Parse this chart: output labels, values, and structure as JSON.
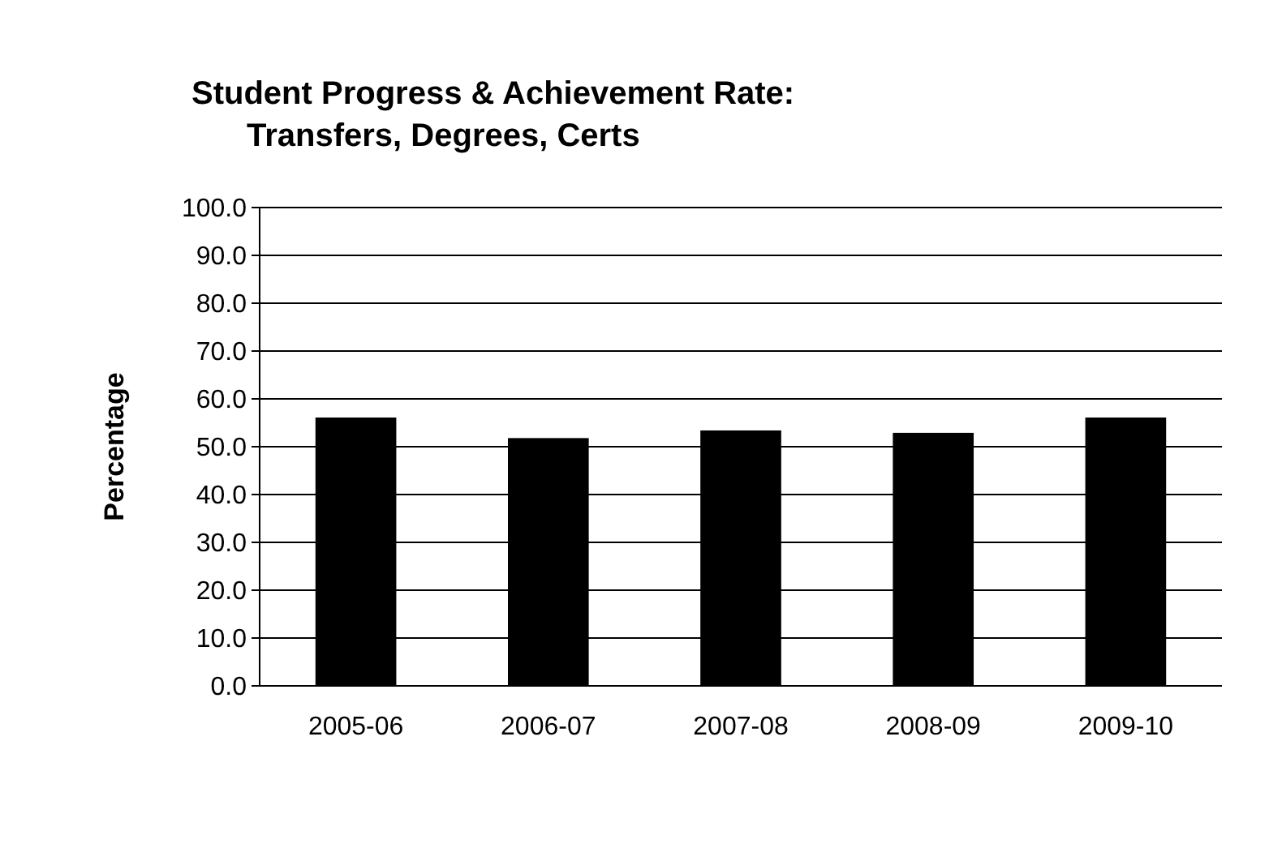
{
  "chart_data": {
    "type": "bar",
    "title": "Student Progress & Achievement Rate:\nTransfers, Degrees, Certs",
    "ylabel": "Percentage",
    "categories": [
      "2005-06",
      "2006-07",
      "2007-08",
      "2008-09",
      "2009-10"
    ],
    "values": [
      56.1,
      51.8,
      53.4,
      52.9,
      56.1
    ],
    "color": "#000000",
    "ylim": [
      0,
      100
    ],
    "yticks": [
      {
        "value": 0,
        "label": "0.0"
      },
      {
        "value": 10,
        "label": "10.0"
      },
      {
        "value": 20,
        "label": "20.0"
      },
      {
        "value": 30,
        "label": "30.0"
      },
      {
        "value": 40,
        "label": "40.0"
      },
      {
        "value": 50,
        "label": "50.0"
      },
      {
        "value": 60,
        "label": "60.0"
      },
      {
        "value": 70,
        "label": "70.0"
      },
      {
        "value": 80,
        "label": "80.0"
      },
      {
        "value": 90,
        "label": "90.0"
      },
      {
        "value": 100,
        "label": "100.0"
      }
    ],
    "grid": "y"
  }
}
